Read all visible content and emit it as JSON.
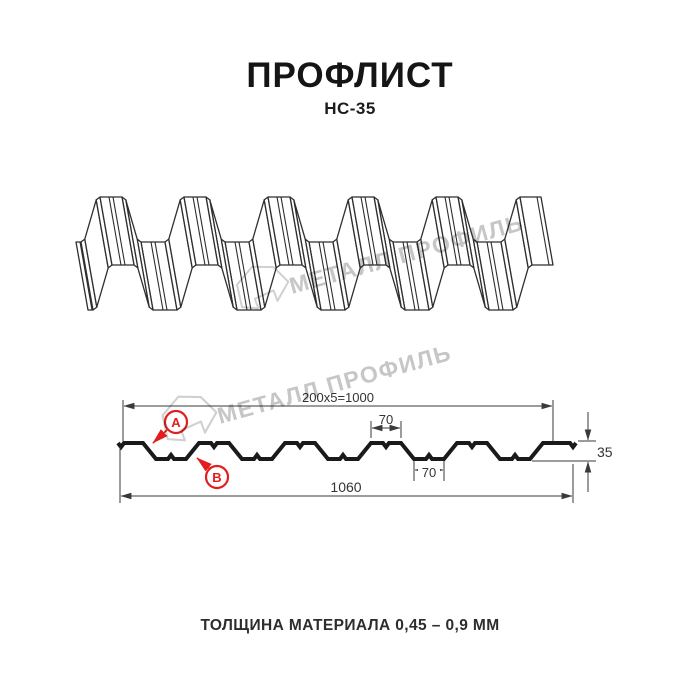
{
  "header": {
    "title": "ПРОФЛИСТ",
    "subtitle": "НС-35"
  },
  "watermark": {
    "text": "МЕТАЛЛ ПРОФИЛЬ",
    "color": "#c6c6c6",
    "logo_color": "#d0d0d0"
  },
  "cross_section": {
    "dims": {
      "pitch": "200x5=1000",
      "top_flat": "70",
      "bottom_flat": "70",
      "height": "35",
      "total_width": "1060"
    },
    "labels": {
      "a": "А",
      "b": "В"
    },
    "colors": {
      "profile": "#1a1a1a",
      "dim": "#3a3a3a",
      "accent_red": "#e11d1d"
    }
  },
  "drawing3d": {
    "colors": {
      "line": "#2e2e2e",
      "fill": "#ffffff"
    }
  },
  "footer": {
    "text": "ТОЛЩИНА МАТЕРИАЛА 0,45 – 0,9 ММ"
  }
}
